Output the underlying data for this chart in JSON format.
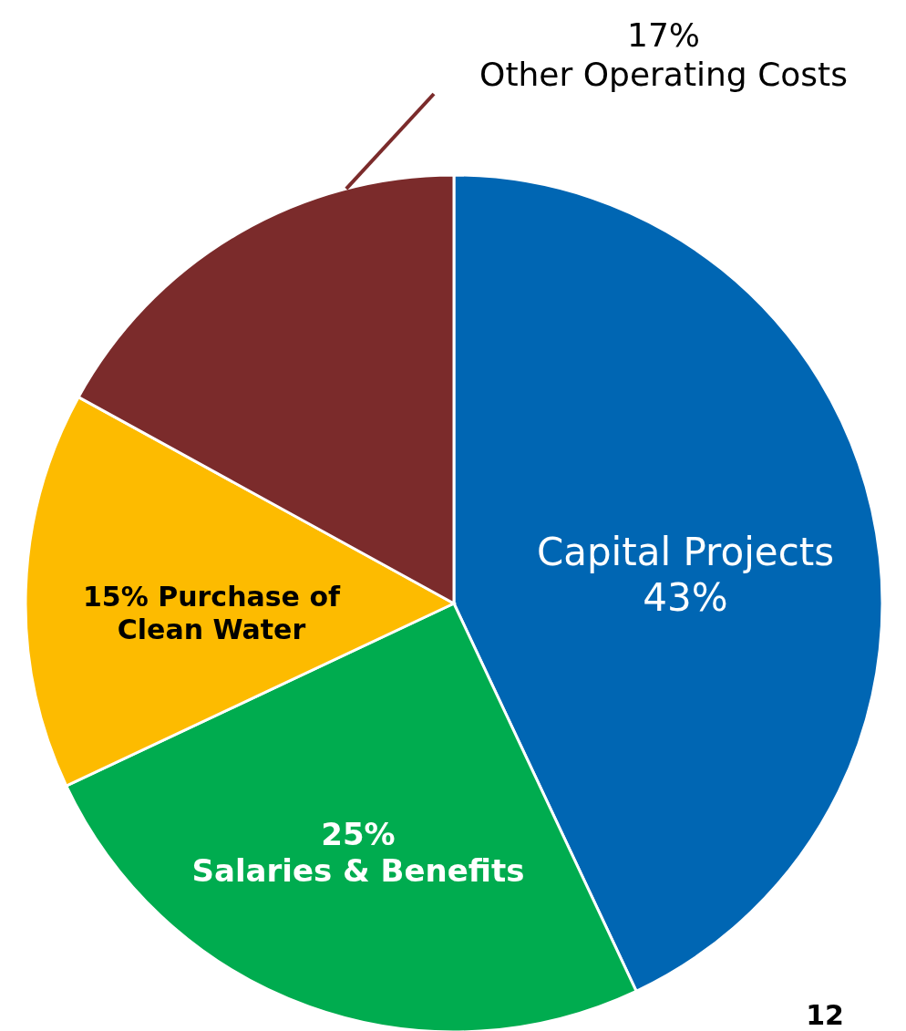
{
  "chart_data": {
    "type": "pie",
    "categories": [
      "Capital Projects",
      "Salaries & Benefits",
      "Purchase of Clean Water",
      "Other Operating Costs"
    ],
    "values": [
      43,
      25,
      15,
      17
    ],
    "value_labels": [
      "43%",
      "25%",
      "15%",
      "17%"
    ],
    "colors": [
      "#0066b3",
      "#00ac4f",
      "#fdbb00",
      "#7b2b2b"
    ],
    "annotations": [
      "12"
    ]
  }
}
